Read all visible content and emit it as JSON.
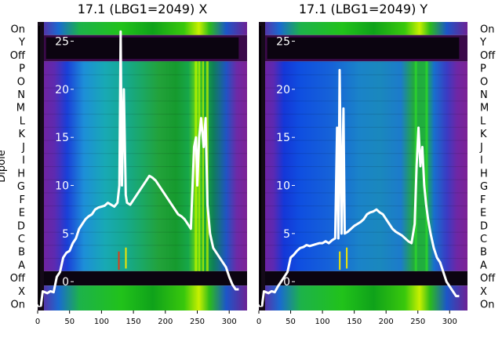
{
  "chart_data": [
    {
      "type": "heatmap",
      "title": "17.1 (LBG1=2049) X",
      "ylabel": "Dipole",
      "xlim": [
        0,
        328
      ],
      "x_ticks": [
        0,
        50,
        100,
        150,
        200,
        250,
        300
      ],
      "row_labels": [
        "On",
        "Y",
        "Off",
        "P",
        "O",
        "N",
        "M",
        "L",
        "K",
        "J",
        "I",
        "H",
        "G",
        "F",
        "E",
        "D",
        "C",
        "B",
        "A",
        "Off",
        "X",
        "On"
      ],
      "overlay_ticks": [
        0,
        5,
        10,
        15,
        20,
        25
      ],
      "overlay_ylim": [
        -3,
        27
      ],
      "overlay": {
        "x": [
          0,
          5,
          8,
          15,
          20,
          25,
          30,
          35,
          40,
          45,
          50,
          55,
          60,
          65,
          70,
          75,
          80,
          85,
          90,
          95,
          100,
          105,
          110,
          115,
          120,
          125,
          128,
          130,
          132,
          135,
          138,
          140,
          145,
          150,
          155,
          160,
          165,
          170,
          175,
          180,
          185,
          190,
          195,
          200,
          205,
          210,
          215,
          220,
          225,
          230,
          235,
          240,
          245,
          248,
          250,
          253,
          256,
          260,
          263,
          266,
          270,
          275,
          280,
          285,
          290,
          295,
          300,
          305,
          310,
          315
        ],
        "y": [
          -2.5,
          -2.5,
          -1,
          -1.2,
          -1,
          -1.1,
          0.5,
          1,
          2.5,
          3,
          3.2,
          4,
          4.5,
          5.5,
          6,
          6.5,
          6.8,
          7,
          7.5,
          7.7,
          7.8,
          7.9,
          8.2,
          8,
          7.8,
          8.2,
          10,
          26,
          10,
          20,
          9,
          8.2,
          8,
          8.5,
          9,
          9.5,
          10,
          10.5,
          11,
          10.8,
          10.5,
          10,
          9.5,
          9,
          8.5,
          8,
          7.5,
          7,
          6.8,
          6.5,
          6,
          5.5,
          14,
          15,
          10,
          15,
          17,
          14,
          17,
          8,
          5,
          3.5,
          3,
          2.5,
          2,
          1.5,
          0.5,
          -0.3,
          -0.8,
          -0.8
        ]
      },
      "marker_notes": "thin red and yellow streaks near x≈125–135 in lower rows"
    },
    {
      "type": "heatmap",
      "title": "17.1 (LBG1=2049) Y",
      "xlim": [
        0,
        328
      ],
      "x_ticks": [
        0,
        50,
        100,
        150,
        200,
        250,
        300
      ],
      "row_labels": [
        "On",
        "Y",
        "Off",
        "P",
        "O",
        "N",
        "M",
        "L",
        "K",
        "J",
        "I",
        "H",
        "G",
        "F",
        "E",
        "D",
        "C",
        "B",
        "A",
        "Off",
        "X",
        "On"
      ],
      "overlay_ticks": [
        0,
        5,
        10,
        15,
        20,
        25
      ],
      "overlay_ylim": [
        -3,
        27
      ],
      "overlay": {
        "x": [
          0,
          5,
          8,
          15,
          20,
          25,
          30,
          35,
          40,
          45,
          50,
          55,
          60,
          65,
          70,
          75,
          80,
          85,
          90,
          95,
          100,
          105,
          110,
          115,
          120,
          123,
          125,
          127,
          130,
          133,
          135,
          140,
          145,
          150,
          155,
          160,
          165,
          170,
          175,
          180,
          185,
          190,
          195,
          200,
          205,
          210,
          215,
          220,
          225,
          230,
          235,
          240,
          245,
          248,
          251,
          254,
          257,
          260,
          263,
          266,
          270,
          275,
          280,
          285,
          290,
          295,
          300,
          305,
          310,
          315
        ],
        "y": [
          -2.5,
          -2.5,
          -1,
          -1.2,
          -1,
          -1.1,
          -0.5,
          0,
          0.5,
          1,
          2.5,
          2.8,
          3.2,
          3.5,
          3.6,
          3.8,
          3.7,
          3.8,
          3.9,
          4,
          4,
          4.2,
          4,
          4.3,
          4.5,
          16,
          4.5,
          22,
          5,
          18,
          5,
          5.2,
          5.5,
          5.8,
          6,
          6.2,
          6.5,
          7,
          7.2,
          7.3,
          7.5,
          7.2,
          7,
          6.5,
          6,
          5.5,
          5.2,
          5,
          4.8,
          4.5,
          4.2,
          4,
          6,
          12,
          16,
          12,
          14,
          10,
          8,
          6.5,
          5,
          3.5,
          2.5,
          2,
          1,
          0,
          -0.5,
          -1,
          -1.5,
          -1.5
        ]
      },
      "marker_notes": "thin yellow streaks near x≈125–135 in lower rows"
    }
  ]
}
